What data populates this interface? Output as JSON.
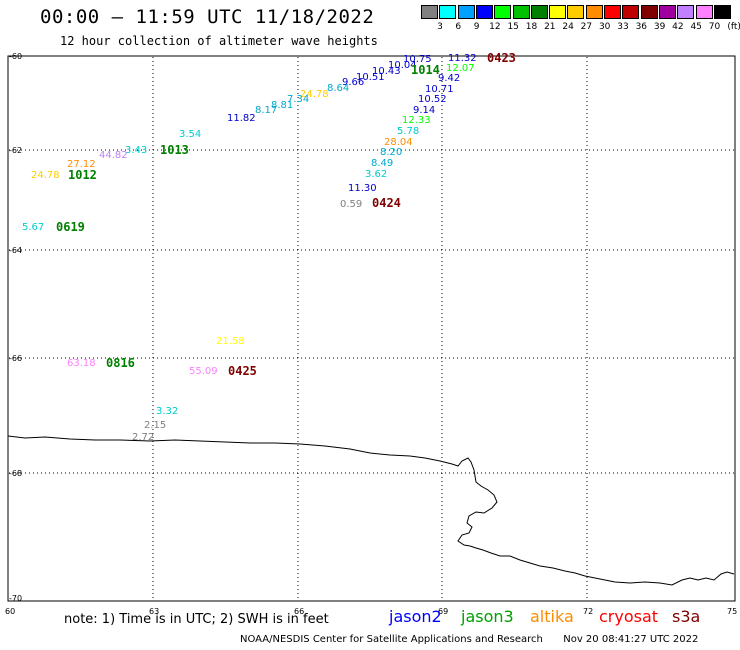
{
  "header": {
    "title": "00:00 – 11:59 UTC 11/18/2022",
    "subtitle": "12 hour collection of altimeter wave heights"
  },
  "scale": {
    "unit": "(ft)",
    "bins": [
      {
        "label": "3",
        "color": "#808080"
      },
      {
        "label": "6",
        "color": "#00ffff"
      },
      {
        "label": "9",
        "color": "#00a0ff"
      },
      {
        "label": "12",
        "color": "#0000ff"
      },
      {
        "label": "15",
        "color": "#00ff00"
      },
      {
        "label": "18",
        "color": "#00c000"
      },
      {
        "label": "21",
        "color": "#008000"
      },
      {
        "label": "24",
        "color": "#ffff00"
      },
      {
        "label": "27",
        "color": "#ffcc00"
      },
      {
        "label": "30",
        "color": "#ff8c00"
      },
      {
        "label": "33",
        "color": "#ff0000"
      },
      {
        "label": "36",
        "color": "#c00000"
      },
      {
        "label": "39",
        "color": "#800000"
      },
      {
        "label": "42",
        "color": "#a000a0"
      },
      {
        "label": "45",
        "color": "#c080ff"
      },
      {
        "label": "70",
        "color": "#ff80ff"
      },
      {
        "label": "",
        "color": "#000000"
      }
    ]
  },
  "axes": {
    "lat_labels": [
      "-60",
      "-62",
      "-64",
      "-66",
      "-68",
      "-70"
    ],
    "lon_labels": [
      "60",
      "63",
      "66",
      "69",
      "72",
      "75"
    ]
  },
  "observations": [
    {
      "value": "10.75",
      "color": "#0000cc"
    },
    {
      "value": "10.04",
      "color": "#0000cc"
    },
    {
      "value": "10.43",
      "color": "#0000cc"
    },
    {
      "value": "10.51",
      "color": "#0000cc"
    },
    {
      "value": "9.66",
      "color": "#0000cc"
    },
    {
      "value": "8.64",
      "color": "#00aacc"
    },
    {
      "value": "24.78",
      "color": "#ffcc00"
    },
    {
      "value": "7.34",
      "color": "#00aacc"
    },
    {
      "value": "8.81",
      "color": "#00aacc"
    },
    {
      "value": "8.17",
      "color": "#00aacc"
    },
    {
      "value": "11.82",
      "color": "#0000cc"
    },
    {
      "value": "11.32",
      "color": "#0000cc"
    },
    {
      "value": "12.07",
      "color": "#00ff00"
    },
    {
      "value": "9.42",
      "color": "#0000cc"
    },
    {
      "value": "10.71",
      "color": "#0000cc"
    },
    {
      "value": "10.52",
      "color": "#0000cc"
    },
    {
      "value": "9.14",
      "color": "#0000cc"
    },
    {
      "value": "12.33",
      "color": "#00ff00"
    },
    {
      "value": "5.78",
      "color": "#00cccc"
    },
    {
      "value": "28.04",
      "color": "#ff8c00"
    },
    {
      "value": "8.20",
      "color": "#00aacc"
    },
    {
      "value": "8.49",
      "color": "#00aacc"
    },
    {
      "value": "3.62",
      "color": "#00cccc"
    },
    {
      "value": "11.30",
      "color": "#0000cc"
    },
    {
      "value": "0.59",
      "color": "#808080"
    },
    {
      "value": "3.54",
      "color": "#00cccc"
    },
    {
      "value": "3.43",
      "color": "#00cccc"
    },
    {
      "value": "44.82",
      "color": "#c080ff"
    },
    {
      "value": "27.12",
      "color": "#ff8c00"
    },
    {
      "value": "24.78",
      "color": "#ffcc00"
    },
    {
      "value": "5.67",
      "color": "#00cccc"
    },
    {
      "value": "21.58",
      "color": "#ffff00"
    },
    {
      "value": "63.18",
      "color": "#ff80ff"
    },
    {
      "value": "55.09",
      "color": "#ff80ff"
    },
    {
      "value": "3.32",
      "color": "#00cccc"
    },
    {
      "value": "2.15",
      "color": "#808080"
    },
    {
      "value": "2.72",
      "color": "#808080"
    }
  ],
  "passes": [
    {
      "time": "0423",
      "color": "#800000"
    },
    {
      "time": "1014",
      "color": "#008000"
    },
    {
      "time": "0424",
      "color": "#800000"
    },
    {
      "time": "1013",
      "color": "#008000"
    },
    {
      "time": "1012",
      "color": "#008000"
    },
    {
      "time": "0619",
      "color": "#008000"
    },
    {
      "time": "0816",
      "color": "#008000"
    },
    {
      "time": "0425",
      "color": "#800000"
    }
  ],
  "footer": {
    "note": "note:  1) Time is in UTC;  2) SWH is in feet",
    "satellites": [
      {
        "name": "jason2",
        "color": "#0000ff"
      },
      {
        "name": "jason3",
        "color": "#00a000"
      },
      {
        "name": "altika",
        "color": "#ff8c00"
      },
      {
        "name": "cryosat",
        "color": "#ff0000"
      },
      {
        "name": "s3a",
        "color": "#800000"
      }
    ],
    "credit": "NOAA/NESDIS Center for Satellite Applications and Research",
    "timestamp": "Nov 20 08:41:27 UTC 2022"
  }
}
